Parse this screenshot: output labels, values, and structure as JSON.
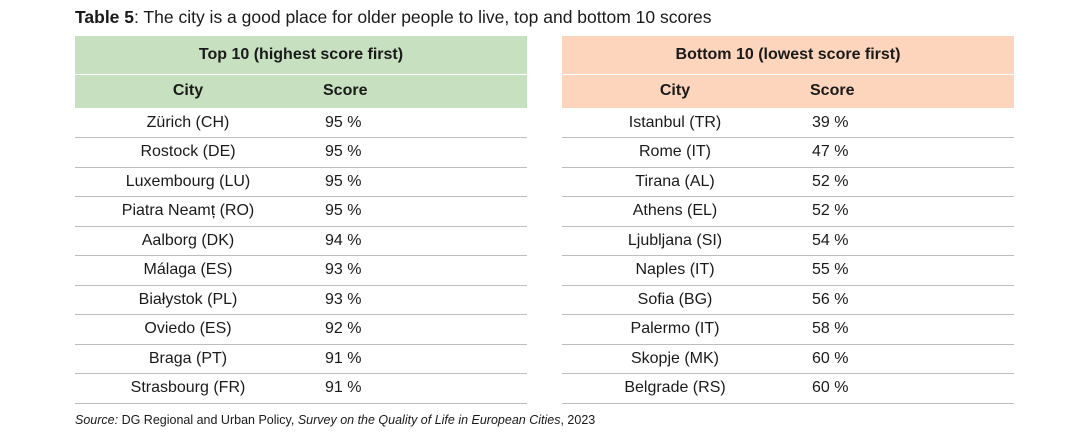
{
  "caption": {
    "label": "Table 5",
    "text": ": The city is a good place for older people to live, top and bottom 10 scores"
  },
  "top_table": {
    "group_header": "Top 10 (highest score first)",
    "columns": [
      "City",
      "Score"
    ],
    "rows": [
      {
        "city": "Zürich (CH)",
        "score": "95 %"
      },
      {
        "city": "Rostock (DE)",
        "score": "95 %"
      },
      {
        "city": "Luxembourg (LU)",
        "score": "95 %"
      },
      {
        "city": "Piatra Neamț (RO)",
        "score": "95 %"
      },
      {
        "city": "Aalborg (DK)",
        "score": "94 %"
      },
      {
        "city": "Málaga (ES)",
        "score": "93 %"
      },
      {
        "city": "Białystok (PL)",
        "score": "93 %"
      },
      {
        "city": "Oviedo (ES)",
        "score": "92 %"
      },
      {
        "city": "Braga (PT)",
        "score": "91 %"
      },
      {
        "city": "Strasbourg (FR)",
        "score": "91 %"
      }
    ]
  },
  "bottom_table": {
    "group_header": "Bottom 10 (lowest score first)",
    "columns": [
      "City",
      "Score"
    ],
    "rows": [
      {
        "city": "Istanbul (TR)",
        "score": "39 %"
      },
      {
        "city": "Rome (IT)",
        "score": "47 %"
      },
      {
        "city": "Tirana (AL)",
        "score": "52 %"
      },
      {
        "city": "Athens (EL)",
        "score": "52 %"
      },
      {
        "city": "Ljubljana (SI)",
        "score": "54 %"
      },
      {
        "city": "Naples (IT)",
        "score": "55 %"
      },
      {
        "city": "Sofia (BG)",
        "score": "56 %"
      },
      {
        "city": "Palermo (IT)",
        "score": "58 %"
      },
      {
        "city": "Skopje (MK)",
        "score": "60 %"
      },
      {
        "city": "Belgrade (RS)",
        "score": "60 %"
      }
    ]
  },
  "source": {
    "label": "Source:",
    "publisher": " DG Regional and Urban Policy, ",
    "survey": "Survey on the Quality of Life in European Cities",
    "year": ", 2023"
  },
  "colors": {
    "top_header_bg": "#c6e0c0",
    "bottom_header_bg": "#fdd5bd",
    "row_divider": "#bdbdbd"
  }
}
